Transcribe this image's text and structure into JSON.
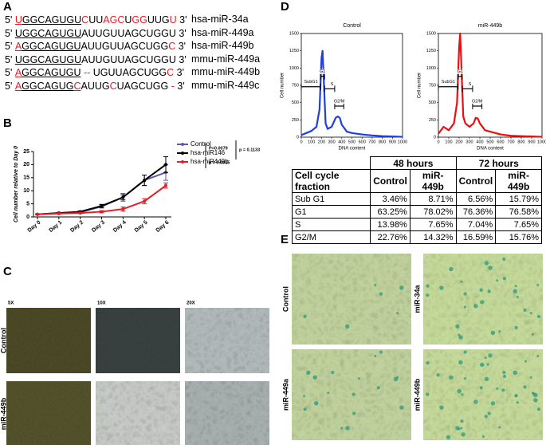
{
  "panel_labels": [
    "A",
    "B",
    "C",
    "D",
    "E"
  ],
  "sequences": {
    "prime5": "5'",
    "prime3": "3'",
    "rows": [
      {
        "name": "hsa-miR-34a",
        "segments": [
          {
            "text": "U",
            "color": "#e31e24",
            "underline": true
          },
          {
            "text": "GGCAGUGU",
            "color": "#000000",
            "underline": true
          },
          {
            "text": "C",
            "color": "#e31e24",
            "underline": false
          },
          {
            "text": "UU",
            "color": "#000000",
            "underline": false
          },
          {
            "text": "AGC",
            "color": "#e31e24",
            "underline": false
          },
          {
            "text": "U",
            "color": "#000000",
            "underline": false
          },
          {
            "text": "GG",
            "color": "#e31e24",
            "underline": false
          },
          {
            "text": "UUG",
            "color": "#000000",
            "underline": false
          },
          {
            "text": "U",
            "color": "#e31e24",
            "underline": false
          }
        ]
      },
      {
        "name": "hsa-miR-449a",
        "segments": [
          {
            "text": "UGGCAGUGU",
            "color": "#000000",
            "underline": true
          },
          {
            "text": "AUUGUUAGCUGGU",
            "color": "#000000",
            "underline": false
          }
        ]
      },
      {
        "name": "hsa-miR-449b",
        "segments": [
          {
            "text": "A",
            "color": "#e31e24",
            "underline": true
          },
          {
            "text": "GGCAGUGU",
            "color": "#000000",
            "underline": true
          },
          {
            "text": "AUUGUUAGCUGG",
            "color": "#000000",
            "underline": false
          },
          {
            "text": "C",
            "color": "#e31e24",
            "underline": false
          }
        ]
      },
      {
        "name": "mmu-miR-449a",
        "segments": [
          {
            "text": "UGGCAGUGU",
            "color": "#000000",
            "underline": true
          },
          {
            "text": "AUUGUUAGCUGGU",
            "color": "#000000",
            "underline": false
          }
        ]
      },
      {
        "name": "mmu-miR-449b",
        "segments": [
          {
            "text": "A",
            "color": "#e31e24",
            "underline": true
          },
          {
            "text": "GGCAGUGU",
            "color": "#000000",
            "underline": true
          },
          {
            "text": " -- ",
            "color": "#e31e24",
            "underline": false
          },
          {
            "text": "UGUUAGCUGG",
            "color": "#000000",
            "underline": false
          },
          {
            "text": "C",
            "color": "#e31e24",
            "underline": false
          }
        ]
      },
      {
        "name": "mmu-miR-449c",
        "segments": [
          {
            "text": "A",
            "color": "#e31e24",
            "underline": true
          },
          {
            "text": "GGCAGUG",
            "color": "#000000",
            "underline": true
          },
          {
            "text": "C",
            "color": "#e31e24",
            "underline": true
          },
          {
            "text": "AUUG",
            "color": "#000000",
            "underline": false
          },
          {
            "text": "C",
            "color": "#e31e24",
            "underline": false
          },
          {
            "text": "UAGCUGG",
            "color": "#000000",
            "underline": false
          },
          {
            "text": " -",
            "color": "#e31e24",
            "underline": false
          }
        ]
      }
    ]
  },
  "chart_data": [
    {
      "type": "line",
      "ylabel": "Cell number relative to Day 0",
      "categories": [
        "Day 0",
        "Day 1",
        "Day 2",
        "Day 3",
        "Day 4",
        "Day 5",
        "Day 6"
      ],
      "series": [
        {
          "name": "Control",
          "color": "#5a5aa8",
          "values": [
            1,
            1.5,
            1.8,
            4,
            7.5,
            14,
            17
          ],
          "errors": [
            0.2,
            0.2,
            0.3,
            0.6,
            1.5,
            2,
            3
          ]
        },
        {
          "name": "hsa-miR146",
          "color": "#000000",
          "values": [
            1,
            1.5,
            2,
            4.2,
            7.5,
            14,
            20
          ],
          "errors": [
            0.2,
            0.2,
            0.3,
            0.6,
            1,
            2,
            3
          ]
        },
        {
          "name": "hsa-miR449b",
          "color": "#e31e24",
          "values": [
            1,
            1.3,
            1.5,
            2,
            3,
            6,
            12
          ],
          "errors": [
            0.2,
            0.2,
            0.2,
            0.4,
            0.8,
            1,
            1
          ]
        }
      ],
      "ylim": [
        0,
        25
      ],
      "yticks": [
        0,
        5,
        10,
        15,
        20,
        25
      ],
      "annotations": [
        "P=0.0079",
        "p = 0.1133",
        "p = 0.0015"
      ]
    },
    {
      "type": "histogram-curve",
      "title": "Control",
      "ylabel": "Cell number",
      "xlabel": "DNA content",
      "color": "#1f3fe0",
      "x": [
        0,
        50,
        100,
        150,
        180,
        200,
        210,
        220,
        240,
        260,
        300,
        340,
        360,
        380,
        400,
        450,
        500,
        550,
        600,
        700,
        800,
        900,
        1000
      ],
      "values": [
        30,
        60,
        90,
        150,
        400,
        1150,
        1250,
        900,
        200,
        120,
        150,
        280,
        300,
        280,
        180,
        80,
        60,
        50,
        40,
        25,
        15,
        10,
        5
      ],
      "xlim": [
        0,
        1000
      ],
      "xticks": [
        0,
        100,
        200,
        300,
        400,
        500,
        600,
        700,
        800,
        900,
        1000
      ],
      "ylim": [
        0,
        1500
      ],
      "yticks": [
        0,
        250,
        500,
        750,
        1000,
        1250,
        1500
      ],
      "gates": [
        {
          "label": "SubG1",
          "range": [
            0,
            190
          ]
        },
        {
          "label": "G1",
          "range": [
            190,
            230
          ]
        },
        {
          "label": "S",
          "range": [
            230,
            330
          ]
        },
        {
          "label": "G2/M",
          "range": [
            330,
            420
          ]
        }
      ]
    },
    {
      "type": "histogram-curve",
      "title": "miR-449b",
      "ylabel": "Cell number",
      "xlabel": "DNA content",
      "color": "#e81010",
      "x": [
        0,
        50,
        100,
        150,
        180,
        200,
        210,
        220,
        240,
        260,
        300,
        340,
        360,
        380,
        400,
        450,
        500,
        550,
        600,
        700,
        800,
        900,
        1000
      ],
      "values": [
        50,
        150,
        100,
        200,
        500,
        1300,
        1500,
        1100,
        300,
        200,
        150,
        200,
        280,
        270,
        200,
        100,
        80,
        60,
        40,
        20,
        15,
        10,
        5
      ],
      "xlim": [
        0,
        1000
      ],
      "xticks": [
        0,
        100,
        200,
        300,
        400,
        500,
        600,
        700,
        800,
        900,
        1000
      ],
      "ylim": [
        0,
        1500
      ],
      "yticks": [
        0,
        250,
        500,
        750,
        1000,
        1250,
        1500
      ],
      "gates": [
        {
          "label": "SubG1",
          "range": [
            0,
            190
          ]
        },
        {
          "label": "G1",
          "range": [
            190,
            230
          ]
        },
        {
          "label": "S",
          "range": [
            230,
            330
          ]
        },
        {
          "label": "G2/M",
          "range": [
            330,
            420
          ]
        }
      ]
    }
  ],
  "table": {
    "groups": [
      "48 hours",
      "72 hours"
    ],
    "columns": [
      "Cell cycle fraction",
      "Control",
      "miR-449b",
      "Control",
      "miR-449b"
    ],
    "rows": [
      [
        "Sub G1",
        "3.46%",
        "8.71%",
        "6.56%",
        "15.79%"
      ],
      [
        "G1",
        "63.25%",
        "78.02%",
        "76.36%",
        "76.58%"
      ],
      [
        "S",
        "13.98%",
        "7.65%",
        "7.04%",
        "7.65%"
      ],
      [
        "G2/M",
        "22.76%",
        "14.32%",
        "16.59%",
        "15.76%"
      ]
    ]
  },
  "panel_c": {
    "magnifications": [
      "5X",
      "10X",
      "20X"
    ],
    "rows": [
      "Control",
      "miR-449b"
    ]
  },
  "panel_e": {
    "labels": [
      "Control",
      "miR-34a",
      "miR-449a",
      "miR-449b"
    ]
  }
}
